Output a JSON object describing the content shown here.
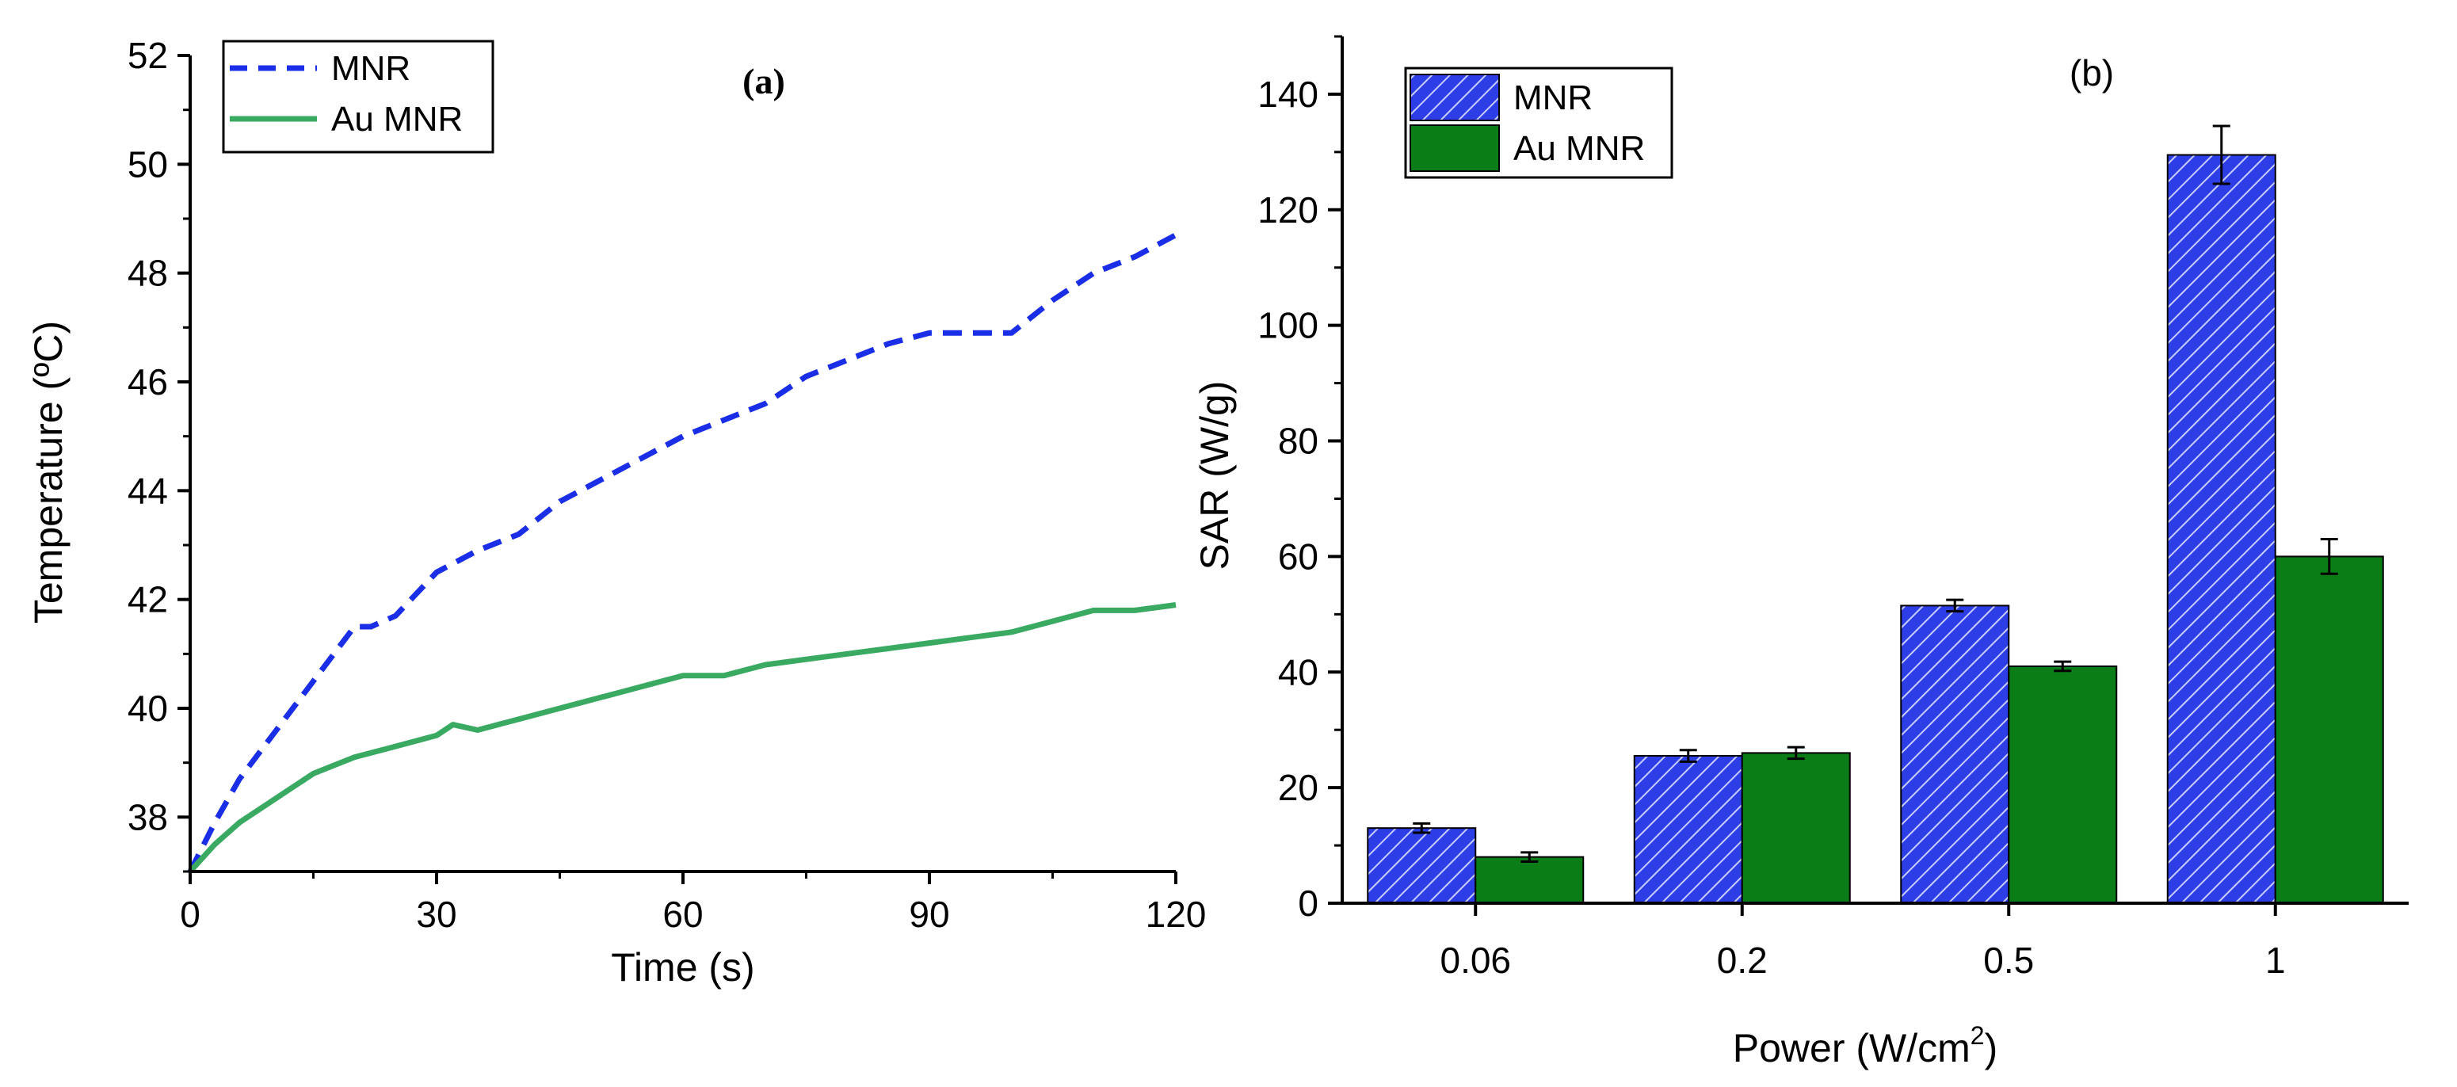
{
  "colors": {
    "mnr_line": "#1a2ee8",
    "au_mnr_line": "#3aaa62",
    "mnr_bar": "#2e3ee6",
    "mnr_hatch": "#c8ccff",
    "au_mnr_bar": "#0a7d16",
    "axis": "#000000"
  },
  "chart_data": [
    {
      "type": "line",
      "panel_label": "(a)",
      "xlabel": "Time (s)",
      "ylabel": "Temperature (ºC)",
      "xlim": [
        0,
        120
      ],
      "ylim": [
        37,
        52
      ],
      "x_ticks": [
        0,
        30,
        60,
        90,
        120
      ],
      "x_tick_labels": [
        "0",
        "30",
        "60",
        "90",
        "120"
      ],
      "y_ticks": [
        38,
        40,
        42,
        44,
        46,
        48,
        50,
        52
      ],
      "y_tick_labels": [
        "38",
        "40",
        "42",
        "44",
        "46",
        "48",
        "50",
        "52"
      ],
      "legend_position": "top-left",
      "series": [
        {
          "name": "MNR",
          "style": "dashed",
          "color": "#1a2ee8",
          "x": [
            0,
            3,
            6,
            10,
            15,
            20,
            22,
            25,
            30,
            35,
            40,
            45,
            50,
            55,
            60,
            65,
            70,
            75,
            80,
            85,
            90,
            95,
            100,
            105,
            110,
            115,
            120
          ],
          "y": [
            37.0,
            37.9,
            38.7,
            39.5,
            40.5,
            41.5,
            41.5,
            41.7,
            42.5,
            42.9,
            43.2,
            43.8,
            44.2,
            44.6,
            45.0,
            45.3,
            45.6,
            46.1,
            46.4,
            46.7,
            46.9,
            46.9,
            46.9,
            47.5,
            48.0,
            48.3,
            48.7
          ]
        },
        {
          "name": "Au MNR",
          "style": "solid",
          "color": "#3aaa62",
          "x": [
            0,
            3,
            6,
            10,
            15,
            20,
            25,
            30,
            32,
            35,
            40,
            45,
            50,
            55,
            60,
            65,
            70,
            75,
            80,
            85,
            90,
            95,
            100,
            105,
            110,
            115,
            120
          ],
          "y": [
            37.0,
            37.5,
            37.9,
            38.3,
            38.8,
            39.1,
            39.3,
            39.5,
            39.7,
            39.6,
            39.8,
            40.0,
            40.2,
            40.4,
            40.6,
            40.6,
            40.8,
            40.9,
            41.0,
            41.1,
            41.2,
            41.3,
            41.4,
            41.6,
            41.8,
            41.8,
            41.9
          ]
        }
      ]
    },
    {
      "type": "bar",
      "panel_label": "(b)",
      "xlabel": "Power (W/cm",
      "xlabel_superscript": "2",
      "xlabel_close": ")",
      "ylabel": "SAR (W/g)",
      "ylim": [
        0,
        150
      ],
      "y_ticks": [
        0,
        20,
        40,
        60,
        80,
        100,
        120,
        140
      ],
      "y_tick_labels": [
        "0",
        "20",
        "40",
        "60",
        "80",
        "100",
        "120",
        "140"
      ],
      "categories": [
        "0.06",
        "0.2",
        "0.5",
        "1"
      ],
      "legend_position": "top-left",
      "series": [
        {
          "name": "MNR",
          "values": [
            13,
            25.5,
            51.5,
            129.5
          ],
          "errors": [
            0.8,
            1.0,
            1.0,
            5.0
          ]
        },
        {
          "name": "Au MNR",
          "values": [
            8,
            26,
            41,
            60
          ],
          "errors": [
            0.8,
            1.0,
            0.8,
            3.0
          ]
        }
      ]
    }
  ]
}
